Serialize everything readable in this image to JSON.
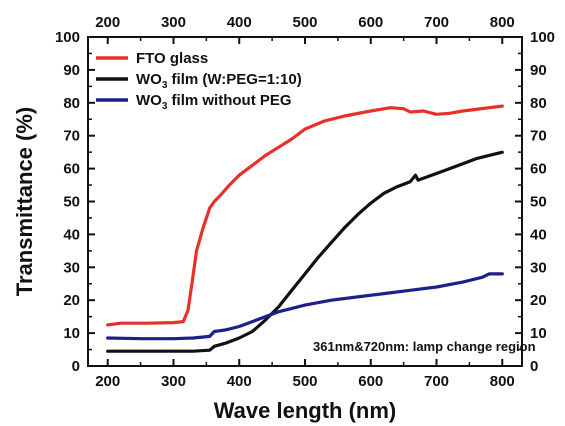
{
  "chart_data": {
    "type": "line",
    "title": "",
    "xlabel": "Wave length (nm)",
    "ylabel": "Transmittance (%)",
    "xlim": [
      170,
      830
    ],
    "ylim": [
      0,
      100
    ],
    "x_ticks": [
      200,
      300,
      400,
      500,
      600,
      700,
      800
    ],
    "y_ticks": [
      0,
      10,
      20,
      30,
      40,
      50,
      60,
      70,
      80,
      90,
      100
    ],
    "mirror_axes": true,
    "grid": false,
    "legend_position": "top-left",
    "annotation": "361nm&720nm: lamp change region",
    "series": [
      {
        "name": "FTO glass",
        "color": "#e8302a",
        "x": [
          200,
          220,
          260,
          300,
          315,
          322,
          328,
          335,
          345,
          355,
          362,
          372,
          385,
          400,
          420,
          440,
          460,
          480,
          500,
          530,
          560,
          600,
          630,
          650,
          660,
          680,
          700,
          720,
          740,
          760,
          780,
          800
        ],
        "y": [
          12.5,
          13,
          13,
          13.2,
          13.5,
          17,
          25,
          35,
          42,
          48,
          50,
          52,
          55,
          58,
          61,
          64,
          66.5,
          69,
          72,
          74.5,
          76,
          77.5,
          78.5,
          78.2,
          77.2,
          77.5,
          76.5,
          76.8,
          77.5,
          78,
          78.5,
          79
        ]
      },
      {
        "name": "WO3 film (W:PEG=1:10)",
        "color": "#111111",
        "x": [
          200,
          250,
          300,
          330,
          355,
          362,
          380,
          400,
          420,
          440,
          460,
          480,
          500,
          520,
          540,
          560,
          580,
          600,
          620,
          640,
          660,
          668,
          672,
          700,
          720,
          740,
          760,
          780,
          800
        ],
        "y": [
          4.5,
          4.5,
          4.5,
          4.5,
          4.8,
          6,
          7,
          8.5,
          10.5,
          14,
          18,
          23,
          28,
          33,
          37.5,
          42,
          46,
          49.5,
          52.5,
          54.5,
          56,
          58,
          56.5,
          58.5,
          60,
          61.5,
          63,
          64,
          65
        ]
      },
      {
        "name": "WO3 film without PEG",
        "color": "#1f1f8a",
        "x": [
          200,
          250,
          300,
          330,
          355,
          362,
          380,
          400,
          420,
          440,
          460,
          480,
          500,
          540,
          580,
          620,
          660,
          700,
          740,
          770,
          780,
          800
        ],
        "y": [
          8.5,
          8.3,
          8.3,
          8.5,
          9,
          10.5,
          11,
          12,
          13.5,
          15,
          16.5,
          17.5,
          18.5,
          20,
          21,
          22,
          23,
          24,
          25.5,
          27,
          28,
          28
        ]
      }
    ]
  },
  "legend_labels": [
    {
      "main": "FTO glass",
      "sub": "",
      "rest": ""
    },
    {
      "main": "WO",
      "sub": "3",
      "rest": " film (W:PEG=1:10)"
    },
    {
      "main": "WO",
      "sub": "3",
      "rest": " film without PEG"
    }
  ]
}
